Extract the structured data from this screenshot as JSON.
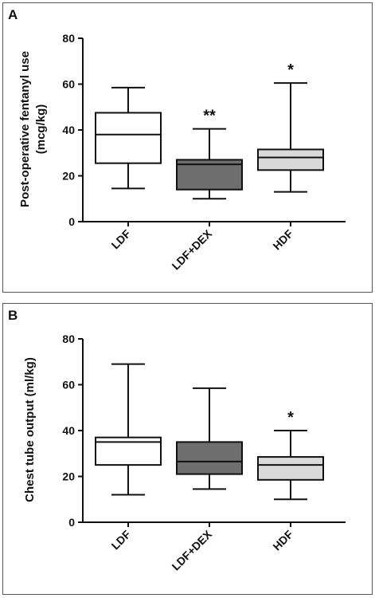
{
  "chart_data": [
    {
      "type": "box",
      "panel_label": "A",
      "ylabel_line1": "Post-operative fentanyl use",
      "ylabel_line2": "(mcg/kg)",
      "xlabel": "",
      "ylim": [
        0,
        80
      ],
      "yticks": [
        0,
        20,
        40,
        60,
        80
      ],
      "categories": [
        "LDF",
        "LDF+DEX",
        "HDF"
      ],
      "boxes": [
        {
          "category": "LDF",
          "whisker_low": 14.5,
          "q1": 25.5,
          "median": 38,
          "q3": 47.5,
          "whisker_high": 58.5,
          "fill": "#ffffff",
          "annotation": ""
        },
        {
          "category": "LDF+DEX",
          "whisker_low": 10,
          "q1": 14,
          "median": 25,
          "q3": 27,
          "whisker_high": 40.5,
          "fill": "#6e6e6e",
          "annotation": "**"
        },
        {
          "category": "HDF",
          "whisker_low": 13,
          "q1": 22.5,
          "median": 28,
          "q3": 31.5,
          "whisker_high": 60.5,
          "fill": "#d9d9d9",
          "annotation": "*"
        }
      ]
    },
    {
      "type": "box",
      "panel_label": "B",
      "ylabel_line1": "Chest tube output (ml/kg)",
      "ylabel_line2": "",
      "xlabel": "",
      "ylim": [
        0,
        80
      ],
      "yticks": [
        0,
        20,
        40,
        60,
        80
      ],
      "categories": [
        "LDF",
        "LDF+DEX",
        "HDF"
      ],
      "boxes": [
        {
          "category": "LDF",
          "whisker_low": 12,
          "q1": 25,
          "median": 35,
          "q3": 37,
          "whisker_high": 69,
          "fill": "#ffffff",
          "annotation": ""
        },
        {
          "category": "LDF+DEX",
          "whisker_low": 14.5,
          "q1": 21,
          "median": 26.5,
          "q3": 35,
          "whisker_high": 58.5,
          "fill": "#6e6e6e",
          "annotation": ""
        },
        {
          "category": "HDF",
          "whisker_low": 10,
          "q1": 18.5,
          "median": 25,
          "q3": 28.5,
          "whisker_high": 40,
          "fill": "#d9d9d9",
          "annotation": "*"
        }
      ]
    }
  ]
}
